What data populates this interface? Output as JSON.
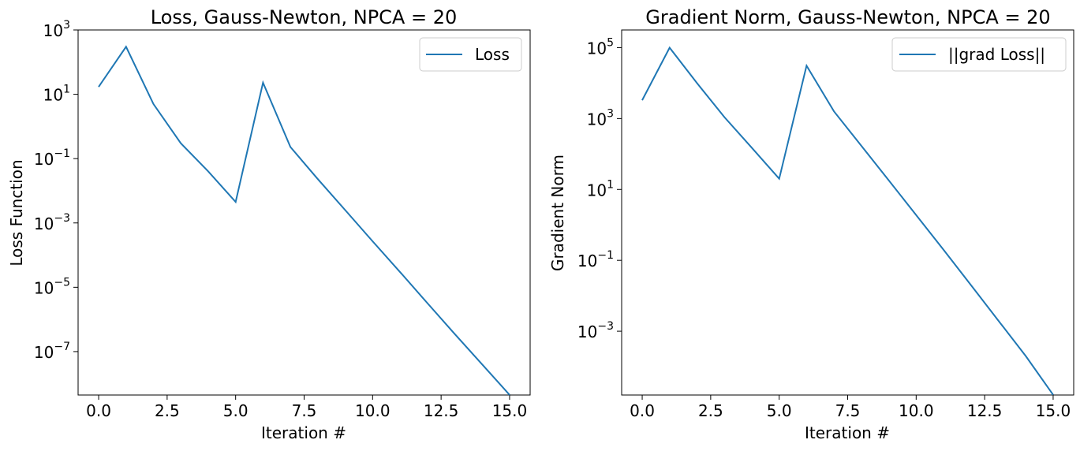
{
  "chart_data": [
    {
      "type": "line",
      "title": "Loss, Gauss-Newton, NPCA = 20",
      "xlabel": "Iteration #",
      "ylabel": "Loss Function",
      "yscale": "log",
      "xlim": [
        -0.75,
        15.75
      ],
      "ylim_exp": [
        -8.35,
        3
      ],
      "grid": false,
      "legend_position": "upper right",
      "x_ticks": [
        0,
        2.5,
        5,
        7.5,
        10,
        12.5,
        15
      ],
      "x_tick_labels": [
        "0.0",
        "2.5",
        "5.0",
        "7.5",
        "10.0",
        "12.5",
        "15.0"
      ],
      "y_tick_exponents": [
        3,
        1,
        -1,
        -3,
        -5,
        -7
      ],
      "y_tick_labels": [
        "10",
        "10",
        "10",
        "10",
        "10",
        "10"
      ],
      "y_tick_superscripts": [
        "3",
        "1",
        "−1",
        "−3",
        "−5",
        "−7"
      ],
      "series": [
        {
          "name": "Loss",
          "color": "#1f77b4",
          "x": [
            0,
            1,
            2,
            3,
            4,
            5,
            6,
            7,
            8,
            9,
            10,
            11,
            12,
            13,
            14,
            15
          ],
          "y": [
            17,
            300,
            5,
            0.3,
            0.04,
            0.0045,
            23,
            0.23,
            0.023,
            0.0025,
            0.00027,
            3e-05,
            3.2e-06,
            3.5e-07,
            4e-08,
            4.5e-09
          ]
        }
      ]
    },
    {
      "type": "line",
      "title": "Gradient Norm, Gauss-Newton, NPCA = 20",
      "xlabel": "Iteration #",
      "ylabel": "Gradient Norm",
      "yscale": "log",
      "xlim": [
        -0.75,
        15.75
      ],
      "ylim_exp": [
        -4.8,
        5.5
      ],
      "grid": false,
      "legend_position": "upper right",
      "x_ticks": [
        0,
        2.5,
        5,
        7.5,
        10,
        12.5,
        15
      ],
      "x_tick_labels": [
        "0.0",
        "2.5",
        "5.0",
        "7.5",
        "10.0",
        "12.5",
        "15.0"
      ],
      "y_tick_exponents": [
        5,
        3,
        1,
        -1,
        -3
      ],
      "y_tick_labels": [
        "10",
        "10",
        "10",
        "10",
        "10"
      ],
      "y_tick_superscripts": [
        "5",
        "3",
        "1",
        "−1",
        "−3"
      ],
      "series": [
        {
          "name": "||grad Loss||",
          "color": "#1f77b4",
          "x": [
            0,
            1,
            2,
            3,
            4,
            5,
            6,
            7,
            8,
            9,
            10,
            11,
            12,
            13,
            14,
            15
          ],
          "y": [
            3300,
            100000,
            10000,
            1100,
            150,
            20,
            31000,
            1600,
            170,
            18,
            1.9,
            0.2,
            0.02,
            0.002,
            0.0002,
            1.6e-05
          ]
        }
      ]
    }
  ]
}
